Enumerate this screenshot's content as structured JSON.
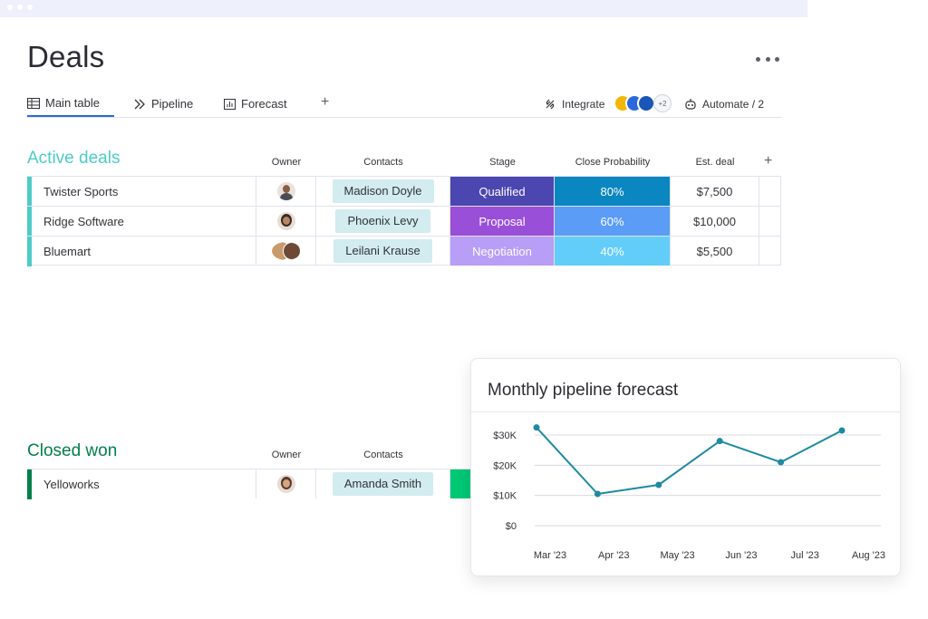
{
  "page": {
    "title": "Deals"
  },
  "tabs": [
    {
      "label": "Main table",
      "icon": "table-icon"
    },
    {
      "label": "Pipeline",
      "icon": "pipeline-icon"
    },
    {
      "label": "Forecast",
      "icon": "chart-icon"
    }
  ],
  "tab_add": "+",
  "toolbar": {
    "integrate_label": "Integrate",
    "integrations_more": "+2",
    "automate_label": "Automate / 2"
  },
  "active_group": {
    "title": "Active deals",
    "color": "#4dccc6",
    "columns": {
      "owner": "Owner",
      "contacts": "Contacts",
      "stage": "Stage",
      "probability": "Close Probability",
      "deal": "Est. deal"
    },
    "add_column": "+",
    "rows": [
      {
        "name": "Twister Sports",
        "contact": "Madison Doyle",
        "stage": "Qualified",
        "stage_color": "#4b46b0",
        "probability": "80%",
        "prob_color": "#0a86c0",
        "deal": "$7,500"
      },
      {
        "name": "Ridge Software",
        "contact": "Phoenix Levy",
        "stage": "Proposal",
        "stage_color": "#9a4fd8",
        "probability": "60%",
        "prob_color": "#5a9cf6",
        "deal": "$10,000"
      },
      {
        "name": "Bluemart",
        "contact": "Leilani Krause",
        "stage": "Negotiation",
        "stage_color": "#b89ef6",
        "probability": "40%",
        "prob_color": "#63cdfa",
        "deal": "$5,500"
      }
    ]
  },
  "closed_group": {
    "title": "Closed won",
    "color": "#037f4c",
    "columns": {
      "owner": "Owner",
      "contacts": "Contacts"
    },
    "rows": [
      {
        "name": "Yelloworks",
        "contact": "Amanda Smith",
        "stage_color": "#00c875"
      }
    ]
  },
  "chart_data": {
    "type": "line",
    "title": "Monthly pipeline forecast",
    "x": [
      "Mar '23",
      "Apr '23",
      "May '23",
      "Jun '23",
      "Jul '23",
      "Aug '23"
    ],
    "y_ticks": [
      "$0",
      "$10K",
      "$20K",
      "$30K"
    ],
    "ylim": [
      0,
      30000
    ],
    "points": [
      {
        "x": "Mar '23",
        "y": 32500
      },
      {
        "x": "Apr '23",
        "y": 10500
      },
      {
        "x": "May '23",
        "y": 13500
      },
      {
        "x": "Jun '23",
        "y": 28000
      },
      {
        "x": "Jul '23",
        "y": 21000
      },
      {
        "x": "Aug '23",
        "y": 31500
      }
    ],
    "line_color": "#1e8aa0",
    "grid": true
  }
}
